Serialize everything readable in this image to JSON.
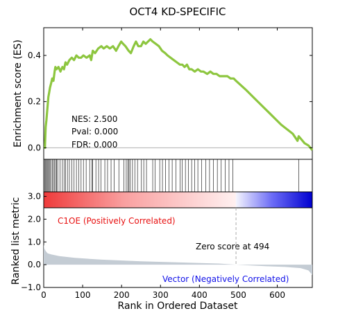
{
  "chart_data": {
    "type": "line",
    "title": "OCT4 KD-SPECIFIC",
    "es_panel": {
      "ylabel": "Enrichment score (ES)",
      "ylim": [
        -0.05,
        0.52
      ],
      "yticks": [
        0.0,
        0.2,
        0.4
      ],
      "ytick_labels": [
        "0.0",
        "0.2",
        "0.4"
      ],
      "line_color": "#8dc63f",
      "stats": [
        "NES: 2.500",
        "Pval: 0.000",
        "FDR: 0.000"
      ],
      "points": [
        [
          0,
          0.0
        ],
        [
          3,
          0.0
        ],
        [
          5,
          0.09
        ],
        [
          7,
          0.12
        ],
        [
          9,
          0.16
        ],
        [
          12,
          0.22
        ],
        [
          14,
          0.24
        ],
        [
          16,
          0.26
        ],
        [
          19,
          0.28
        ],
        [
          22,
          0.3
        ],
        [
          25,
          0.29
        ],
        [
          28,
          0.33
        ],
        [
          30,
          0.35
        ],
        [
          33,
          0.34
        ],
        [
          38,
          0.35
        ],
        [
          43,
          0.33
        ],
        [
          48,
          0.35
        ],
        [
          52,
          0.34
        ],
        [
          56,
          0.37
        ],
        [
          60,
          0.36
        ],
        [
          66,
          0.38
        ],
        [
          72,
          0.39
        ],
        [
          78,
          0.38
        ],
        [
          84,
          0.4
        ],
        [
          90,
          0.39
        ],
        [
          96,
          0.39
        ],
        [
          102,
          0.4
        ],
        [
          110,
          0.39
        ],
        [
          118,
          0.4
        ],
        [
          122,
          0.38
        ],
        [
          126,
          0.42
        ],
        [
          132,
          0.41
        ],
        [
          140,
          0.43
        ],
        [
          148,
          0.44
        ],
        [
          154,
          0.43
        ],
        [
          162,
          0.44
        ],
        [
          170,
          0.43
        ],
        [
          178,
          0.44
        ],
        [
          186,
          0.42
        ],
        [
          192,
          0.44
        ],
        [
          199,
          0.46
        ],
        [
          204,
          0.45
        ],
        [
          210,
          0.44
        ],
        [
          218,
          0.42
        ],
        [
          224,
          0.41
        ],
        [
          231,
          0.44
        ],
        [
          237,
          0.46
        ],
        [
          243,
          0.44
        ],
        [
          250,
          0.44
        ],
        [
          256,
          0.46
        ],
        [
          262,
          0.45
        ],
        [
          268,
          0.46
        ],
        [
          274,
          0.47
        ],
        [
          280,
          0.46
        ],
        [
          288,
          0.45
        ],
        [
          296,
          0.44
        ],
        [
          304,
          0.42
        ],
        [
          312,
          0.41
        ],
        [
          318,
          0.4
        ],
        [
          326,
          0.39
        ],
        [
          334,
          0.38
        ],
        [
          342,
          0.37
        ],
        [
          350,
          0.36
        ],
        [
          356,
          0.36
        ],
        [
          362,
          0.35
        ],
        [
          368,
          0.36
        ],
        [
          374,
          0.34
        ],
        [
          380,
          0.34
        ],
        [
          388,
          0.33
        ],
        [
          396,
          0.34
        ],
        [
          404,
          0.33
        ],
        [
          410,
          0.33
        ],
        [
          420,
          0.32
        ],
        [
          428,
          0.33
        ],
        [
          436,
          0.32
        ],
        [
          444,
          0.32
        ],
        [
          452,
          0.31
        ],
        [
          462,
          0.31
        ],
        [
          472,
          0.31
        ],
        [
          480,
          0.3
        ],
        [
          488,
          0.3
        ],
        [
          494,
          0.29
        ],
        [
          520,
          0.25
        ],
        [
          550,
          0.2
        ],
        [
          580,
          0.15
        ],
        [
          610,
          0.1
        ],
        [
          640,
          0.06
        ],
        [
          652,
          0.03
        ],
        [
          655,
          0.05
        ],
        [
          660,
          0.04
        ],
        [
          670,
          0.02
        ],
        [
          680,
          0.01
        ],
        [
          690,
          -0.01
        ]
      ]
    },
    "hits_panel": {
      "hit_positions": [
        3,
        5,
        7,
        9,
        11,
        14,
        16,
        19,
        22,
        25,
        28,
        31,
        33,
        36,
        42,
        48,
        53,
        56,
        61,
        66,
        72,
        78,
        84,
        90,
        96,
        102,
        109,
        118,
        124,
        126,
        134,
        141,
        147,
        157,
        164,
        173,
        181,
        193,
        206,
        212,
        216,
        219,
        222,
        228,
        234,
        241,
        251,
        257,
        264,
        280,
        286,
        298,
        305,
        313,
        322,
        330,
        340,
        350,
        356,
        364,
        372,
        380,
        388,
        396,
        406,
        416,
        426,
        436,
        446,
        456,
        466,
        476,
        486,
        655
      ]
    },
    "metric_panel": {
      "ylabel": "Ranked list metric",
      "ylim": [
        -1.0,
        3.2
      ],
      "yticks": [
        -1.0,
        0.0,
        1.0,
        2.0,
        3.0
      ],
      "ytick_labels": [
        "−1.0",
        "0.0",
        "1.0",
        "2.0",
        "3.0"
      ],
      "positive_label": "C1OE (Positively Correlated)",
      "negative_label": "Vector (Negatively Correlated)",
      "zero_label": "Zero score at 494",
      "zero_rank": 494,
      "curve": [
        [
          0,
          0.9
        ],
        [
          2,
          0.7
        ],
        [
          5,
          0.6
        ],
        [
          10,
          0.5
        ],
        [
          20,
          0.45
        ],
        [
          40,
          0.38
        ],
        [
          80,
          0.3
        ],
        [
          150,
          0.22
        ],
        [
          250,
          0.15
        ],
        [
          350,
          0.1
        ],
        [
          450,
          0.05
        ],
        [
          494,
          0.0
        ],
        [
          550,
          -0.05
        ],
        [
          620,
          -0.1
        ],
        [
          660,
          -0.15
        ],
        [
          680,
          -0.25
        ],
        [
          690,
          -0.45
        ]
      ]
    },
    "xaxis": {
      "xlabel": "Rank in Ordered Dataset",
      "xlim": [
        0,
        690
      ],
      "xticks": [
        0,
        100,
        200,
        300,
        400,
        500,
        600
      ],
      "xtick_labels": [
        "0",
        "100",
        "200",
        "300",
        "400",
        "500",
        "600"
      ]
    }
  }
}
